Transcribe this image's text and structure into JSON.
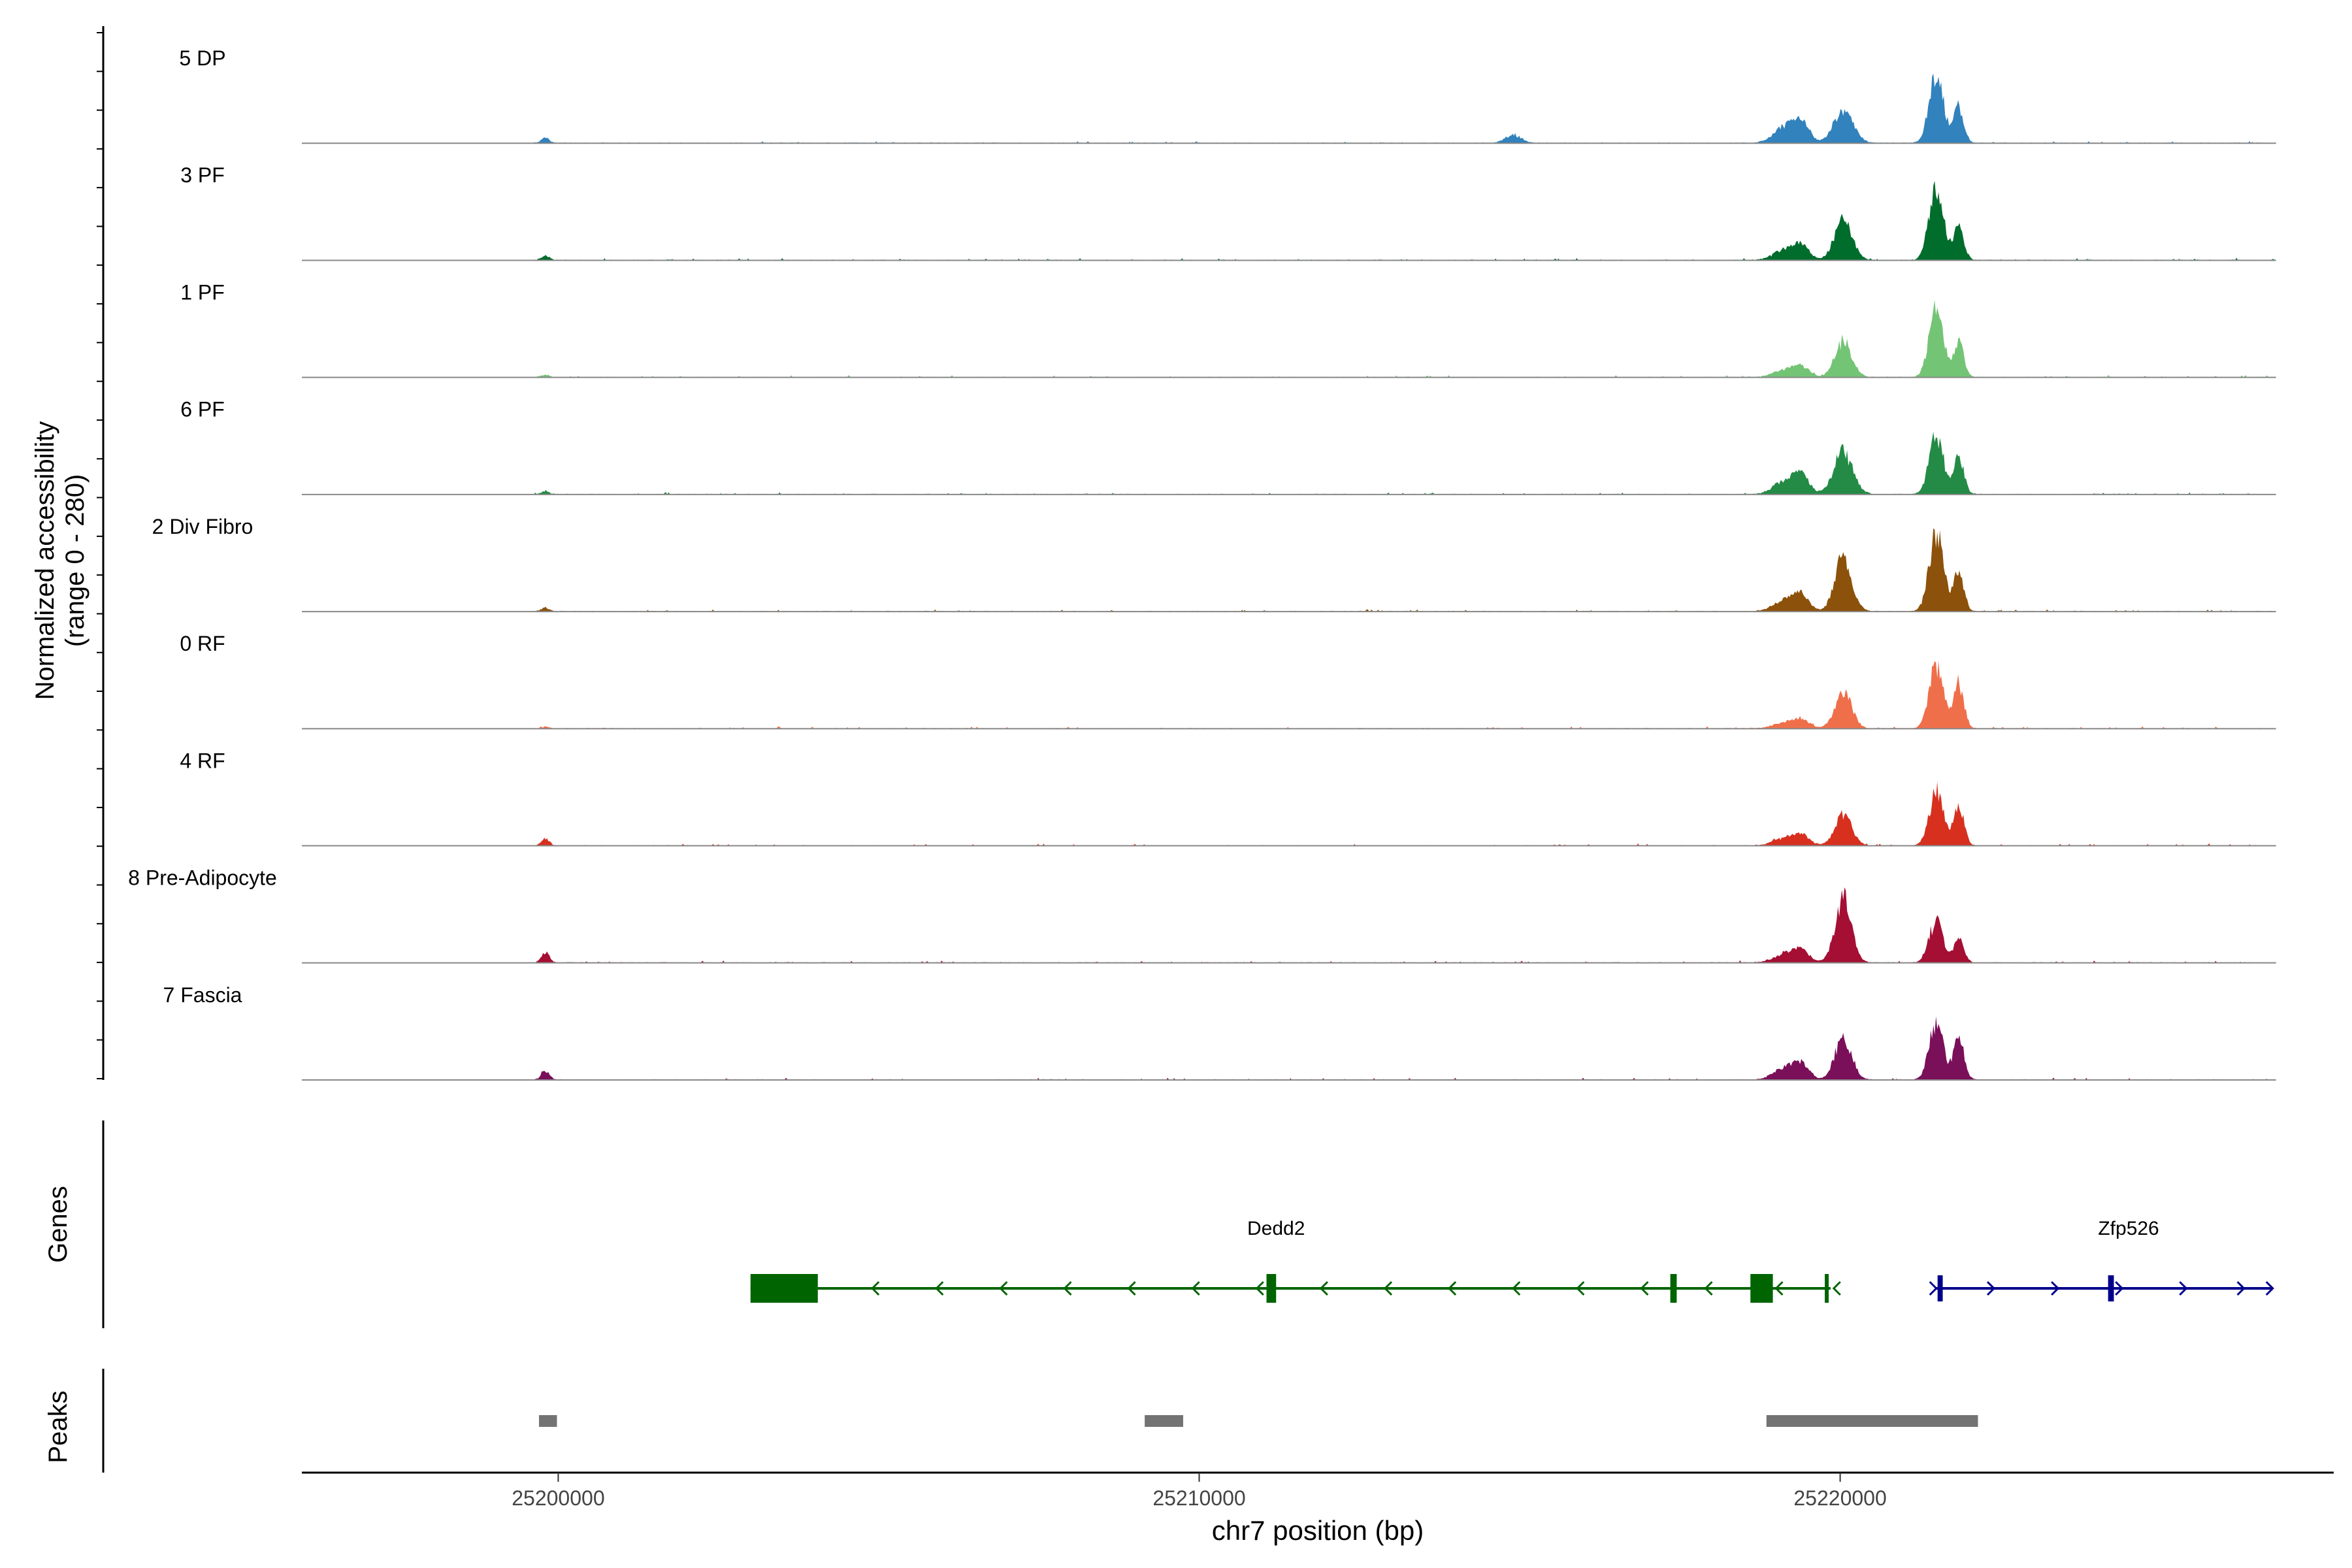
{
  "chart_data": {
    "type": "area",
    "title": "",
    "ylabel_lines": [
      "Normalized accessibility",
      "(range 0 - 280)"
    ],
    "xlabel": "chr7 position (bp)",
    "xlim": [
      25196000,
      25227700
    ],
    "ylim": [
      0,
      280
    ],
    "x_ticks": [
      25200000,
      25210000,
      25220000
    ],
    "x_tick_labels": [
      "25200000",
      "25210000",
      "25220000"
    ],
    "peak_centers": [
      25199800,
      25214900,
      25219150,
      25219400,
      25220050,
      25221500,
      25221850
    ],
    "tracks": [
      {
        "name": "5 DP",
        "color": "#3182bd",
        "peaks": [
          [
            25199800,
            18,
            60
          ],
          [
            25214900,
            28,
            120
          ],
          [
            25219150,
            55,
            180
          ],
          [
            25219400,
            60,
            120
          ],
          [
            25220050,
            110,
            150
          ],
          [
            25221500,
            230,
            110
          ],
          [
            25221850,
            120,
            80
          ]
        ]
      },
      {
        "name": "3 PF",
        "color": "#006d2c",
        "peaks": [
          [
            25199800,
            14,
            60
          ],
          [
            25219150,
            35,
            180
          ],
          [
            25219400,
            40,
            120
          ],
          [
            25220050,
            130,
            140
          ],
          [
            25221500,
            250,
            110
          ],
          [
            25221850,
            110,
            80
          ]
        ]
      },
      {
        "name": "1 PF",
        "color": "#74c476",
        "peaks": [
          [
            25199800,
            8,
            60
          ],
          [
            25219150,
            25,
            180
          ],
          [
            25219400,
            30,
            120
          ],
          [
            25220050,
            120,
            130
          ],
          [
            25221500,
            230,
            110
          ],
          [
            25221850,
            110,
            80
          ]
        ]
      },
      {
        "name": "6 PF",
        "color": "#238b45",
        "peaks": [
          [
            25199800,
            10,
            60
          ],
          [
            25219150,
            45,
            180
          ],
          [
            25219400,
            55,
            120
          ],
          [
            25220050,
            140,
            150
          ],
          [
            25221500,
            195,
            110
          ],
          [
            25221850,
            120,
            80
          ]
        ]
      },
      {
        "name": "2 Div Fibro",
        "color": "#8c510a",
        "peaks": [
          [
            25199800,
            12,
            60
          ],
          [
            25219150,
            40,
            180
          ],
          [
            25219400,
            45,
            120
          ],
          [
            25220050,
            185,
            130
          ],
          [
            25221500,
            265,
            110
          ],
          [
            25221850,
            130,
            80
          ]
        ]
      },
      {
        "name": "0 RF",
        "color": "#ef6f4a",
        "peaks": [
          [
            25199800,
            5,
            60
          ],
          [
            25219150,
            20,
            180
          ],
          [
            25219400,
            25,
            120
          ],
          [
            25220050,
            120,
            130
          ],
          [
            25221500,
            215,
            110
          ],
          [
            25221850,
            150,
            80
          ]
        ]
      },
      {
        "name": "4 RF",
        "color": "#d7301f",
        "peaks": [
          [
            25199800,
            22,
            60
          ],
          [
            25219150,
            25,
            180
          ],
          [
            25219400,
            30,
            120
          ],
          [
            25220050,
            100,
            130
          ],
          [
            25221500,
            180,
            110
          ],
          [
            25221850,
            130,
            80
          ]
        ]
      },
      {
        "name": "8 Pre-Adipocyte",
        "color": "#a50f34",
        "peaks": [
          [
            25199800,
            35,
            60
          ],
          [
            25219150,
            30,
            180
          ],
          [
            25219400,
            35,
            120
          ],
          [
            25220050,
            210,
            130
          ],
          [
            25221500,
            140,
            110
          ],
          [
            25221850,
            70,
            80
          ]
        ]
      },
      {
        "name": "7 Fascia",
        "color": "#7a0f5a",
        "peaks": [
          [
            25199800,
            30,
            60
          ],
          [
            25219150,
            40,
            180
          ],
          [
            25219400,
            45,
            120
          ],
          [
            25220050,
            140,
            130
          ],
          [
            25221500,
            190,
            110
          ],
          [
            25221850,
            140,
            80
          ]
        ]
      }
    ],
    "genes_label": "Genes",
    "genes": [
      {
        "name": "Dedd2",
        "color": "#006400",
        "start": 25203000,
        "end": 25219850,
        "strand": "-",
        "label_pos": 25211200,
        "exons": [
          [
            25203000,
            25204050,
            44
          ],
          [
            25211050,
            25211200,
            44
          ],
          [
            25217350,
            25217450,
            44
          ],
          [
            25218600,
            25218950,
            44
          ],
          [
            25219760,
            25219820,
            44
          ]
        ],
        "arrows": [
          25204900,
          25205900,
          25206900,
          25207900,
          25208900,
          25209900,
          25210900,
          25211900,
          25212900,
          25213900,
          25214900,
          25215900,
          25216900,
          25217900,
          25219000,
          25219900
        ]
      },
      {
        "name": "Zfp526",
        "color": "#00008b",
        "start": 25221500,
        "end": 25226750,
        "strand": "+",
        "label_pos": 25224500,
        "exons": [
          [
            25221520,
            25221600,
            40
          ],
          [
            25224180,
            25224270,
            40
          ]
        ],
        "arrows": [
          25221500,
          25222400,
          25223400,
          25224400,
          25225400,
          25226300,
          25226750
        ]
      }
    ],
    "peaks_label": "Peaks",
    "peak_regions": [
      [
        25199700,
        25199980
      ],
      [
        25209150,
        25209750
      ],
      [
        25218850,
        25222150
      ]
    ]
  }
}
